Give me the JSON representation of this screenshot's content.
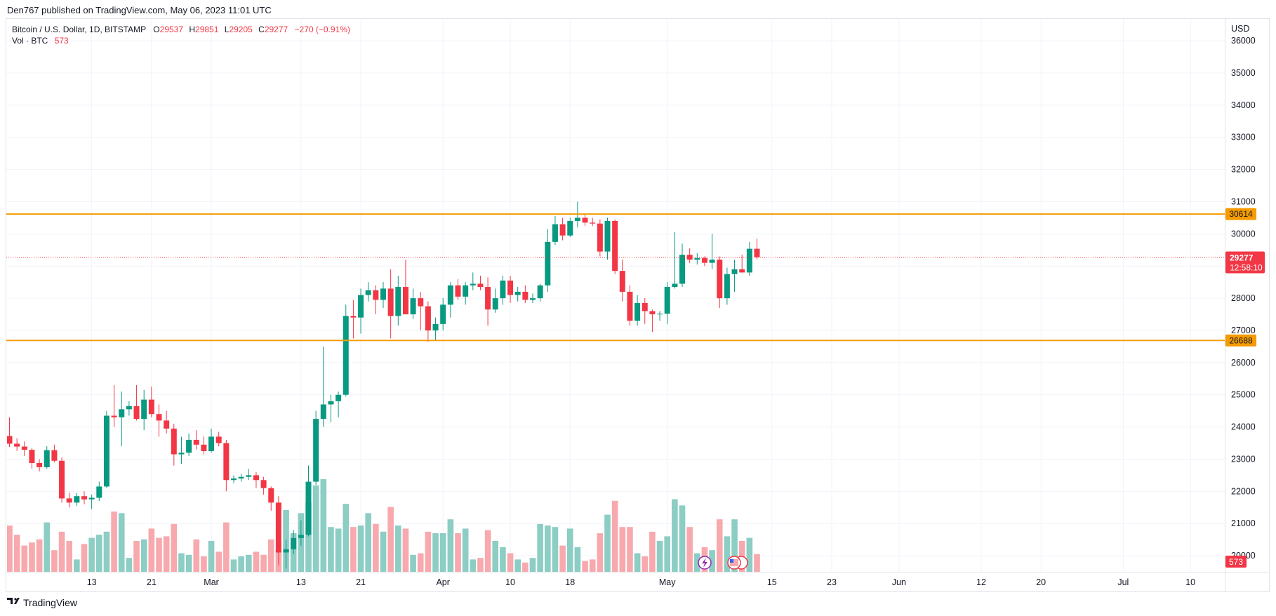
{
  "header": {
    "published_by": "Den767 published on TradingView.com, May 06, 2023 11:01 UTC",
    "symbol_line": "Bitcoin / U.S. Dollar, 1D, BITSTAMP",
    "o_label": "O",
    "o_value": "29537",
    "h_label": "H",
    "h_value": "29851",
    "l_label": "L",
    "l_value": "29205",
    "c_label": "C",
    "c_value": "29277",
    "change": "−270 (−0.91%)",
    "vol_label": "Vol · BTC",
    "vol_value": "573"
  },
  "axis": {
    "currency": "USD"
  },
  "badges": {
    "resistance": "30614",
    "support": "26688",
    "last_price": "29277",
    "countdown": "12:58:10",
    "volume": "573"
  },
  "footer": {
    "brand": "TradingView"
  },
  "colors": {
    "up": "#089981",
    "down": "#f23645",
    "vol_up": "#8ccdc4",
    "vol_down": "#f7a9ae",
    "level_line": "#f59b00",
    "grid": "#f0f3fa"
  },
  "icons": [
    "lightning-icon",
    "us-flag-icon",
    "tradingview-logo-icon"
  ],
  "chart_data": {
    "type": "candlestick",
    "ylim": [
      19500,
      36700
    ],
    "yticks": [
      20000,
      21000,
      22000,
      23000,
      24000,
      25000,
      26000,
      27000,
      28000,
      29000,
      30000,
      31000,
      32000,
      33000,
      34000,
      35000,
      36000
    ],
    "xticks": [
      {
        "label": "13",
        "index": 11
      },
      {
        "label": "21",
        "index": 19
      },
      {
        "label": "Mar",
        "index": 27
      },
      {
        "label": "13",
        "index": 39
      },
      {
        "label": "21",
        "index": 47
      },
      {
        "label": "Apr",
        "index": 58
      },
      {
        "label": "10",
        "index": 67
      },
      {
        "label": "18",
        "index": 75
      },
      {
        "label": "May",
        "index": 88
      },
      {
        "label": "15",
        "index": 102
      },
      {
        "label": "23",
        "index": 110
      },
      {
        "label": "Jun",
        "index": 119
      },
      {
        "label": "12",
        "index": 130
      },
      {
        "label": "20",
        "index": 138
      },
      {
        "label": "Jul",
        "index": 149
      },
      {
        "label": "10",
        "index": 158
      }
    ],
    "levels": [
      30614,
      26688
    ],
    "last_close": 29277,
    "volume_max": 2400,
    "candles": [
      {
        "o": 23720,
        "h": 24300,
        "l": 23380,
        "c": 23480,
        "v": 1500
      },
      {
        "o": 23480,
        "h": 23650,
        "l": 23260,
        "c": 23390,
        "v": 1200
      },
      {
        "o": 23390,
        "h": 23550,
        "l": 23100,
        "c": 23290,
        "v": 850
      },
      {
        "o": 23290,
        "h": 23350,
        "l": 22700,
        "c": 22880,
        "v": 950
      },
      {
        "o": 22880,
        "h": 23000,
        "l": 22620,
        "c": 22750,
        "v": 1050
      },
      {
        "o": 22750,
        "h": 23400,
        "l": 22700,
        "c": 23280,
        "v": 1600
      },
      {
        "o": 23280,
        "h": 23450,
        "l": 22900,
        "c": 22950,
        "v": 700
      },
      {
        "o": 22950,
        "h": 23050,
        "l": 21650,
        "c": 21780,
        "v": 1300
      },
      {
        "o": 21780,
        "h": 21950,
        "l": 21500,
        "c": 21650,
        "v": 1000
      },
      {
        "o": 21650,
        "h": 21950,
        "l": 21550,
        "c": 21850,
        "v": 400
      },
      {
        "o": 21850,
        "h": 22000,
        "l": 21600,
        "c": 21750,
        "v": 900
      },
      {
        "o": 21750,
        "h": 21900,
        "l": 21450,
        "c": 21800,
        "v": 1100
      },
      {
        "o": 21800,
        "h": 22300,
        "l": 21700,
        "c": 22150,
        "v": 1200
      },
      {
        "o": 22150,
        "h": 24500,
        "l": 22100,
        "c": 24350,
        "v": 1300
      },
      {
        "o": 24350,
        "h": 25300,
        "l": 24000,
        "c": 24300,
        "v": 1950
      },
      {
        "o": 24300,
        "h": 25100,
        "l": 23400,
        "c": 24550,
        "v": 1900
      },
      {
        "o": 24550,
        "h": 24800,
        "l": 24350,
        "c": 24650,
        "v": 450
      },
      {
        "o": 24650,
        "h": 25300,
        "l": 24200,
        "c": 24250,
        "v": 1000
      },
      {
        "o": 24250,
        "h": 25150,
        "l": 23900,
        "c": 24850,
        "v": 1050
      },
      {
        "o": 24850,
        "h": 25250,
        "l": 24300,
        "c": 24400,
        "v": 1400
      },
      {
        "o": 24400,
        "h": 24700,
        "l": 23700,
        "c": 24200,
        "v": 1100
      },
      {
        "o": 24200,
        "h": 24500,
        "l": 23800,
        "c": 23950,
        "v": 1150
      },
      {
        "o": 23950,
        "h": 24100,
        "l": 22800,
        "c": 23150,
        "v": 1550
      },
      {
        "o": 23150,
        "h": 23700,
        "l": 22850,
        "c": 23200,
        "v": 600
      },
      {
        "o": 23200,
        "h": 23800,
        "l": 23100,
        "c": 23600,
        "v": 550
      },
      {
        "o": 23600,
        "h": 23900,
        "l": 23300,
        "c": 23450,
        "v": 1050
      },
      {
        "o": 23450,
        "h": 23700,
        "l": 23150,
        "c": 23250,
        "v": 500
      },
      {
        "o": 23250,
        "h": 23950,
        "l": 23200,
        "c": 23700,
        "v": 1000
      },
      {
        "o": 23700,
        "h": 23850,
        "l": 23400,
        "c": 23500,
        "v": 650
      },
      {
        "o": 23500,
        "h": 23600,
        "l": 22000,
        "c": 22350,
        "v": 1600
      },
      {
        "o": 22350,
        "h": 22500,
        "l": 22250,
        "c": 22400,
        "v": 400
      },
      {
        "o": 22400,
        "h": 22550,
        "l": 22300,
        "c": 22450,
        "v": 500
      },
      {
        "o": 22450,
        "h": 22700,
        "l": 22350,
        "c": 22500,
        "v": 550
      },
      {
        "o": 22500,
        "h": 22600,
        "l": 22100,
        "c": 22350,
        "v": 650
      },
      {
        "o": 22350,
        "h": 22450,
        "l": 21900,
        "c": 22100,
        "v": 550
      },
      {
        "o": 22100,
        "h": 22150,
        "l": 21400,
        "c": 21650,
        "v": 1050
      },
      {
        "o": 21650,
        "h": 21850,
        "l": 19700,
        "c": 20100,
        "v": 700
      },
      {
        "o": 20100,
        "h": 20500,
        "l": 19600,
        "c": 20200,
        "v": 2000
      },
      {
        "o": 20200,
        "h": 20800,
        "l": 20050,
        "c": 20550,
        "v": 1250
      },
      {
        "o": 20550,
        "h": 21100,
        "l": 20300,
        "c": 20650,
        "v": 1900
      },
      {
        "o": 20650,
        "h": 22800,
        "l": 20600,
        "c": 22300,
        "v": 2250
      },
      {
        "o": 22300,
        "h": 24500,
        "l": 22200,
        "c": 24250,
        "v": 2800
      },
      {
        "o": 24250,
        "h": 26500,
        "l": 24000,
        "c": 24700,
        "v": 3000
      },
      {
        "o": 24700,
        "h": 25000,
        "l": 24150,
        "c": 24800,
        "v": 1450
      },
      {
        "o": 24800,
        "h": 25100,
        "l": 24300,
        "c": 25000,
        "v": 1400
      },
      {
        "o": 25000,
        "h": 27800,
        "l": 24950,
        "c": 27450,
        "v": 2200
      },
      {
        "o": 27450,
        "h": 27950,
        "l": 26750,
        "c": 27400,
        "v": 1450
      },
      {
        "o": 27400,
        "h": 28300,
        "l": 26900,
        "c": 28100,
        "v": 1500
      },
      {
        "o": 28100,
        "h": 28500,
        "l": 27900,
        "c": 28250,
        "v": 1900
      },
      {
        "o": 28250,
        "h": 28400,
        "l": 27500,
        "c": 27950,
        "v": 1550
      },
      {
        "o": 27950,
        "h": 28500,
        "l": 27700,
        "c": 28300,
        "v": 1300
      },
      {
        "o": 28300,
        "h": 28900,
        "l": 26750,
        "c": 27450,
        "v": 2100
      },
      {
        "o": 27450,
        "h": 28700,
        "l": 27150,
        "c": 28350,
        "v": 1500
      },
      {
        "o": 28350,
        "h": 29200,
        "l": 27500,
        "c": 27500,
        "v": 1400
      },
      {
        "o": 27500,
        "h": 28300,
        "l": 27350,
        "c": 28000,
        "v": 550
      },
      {
        "o": 28000,
        "h": 28200,
        "l": 27000,
        "c": 27750,
        "v": 600
      },
      {
        "o": 27750,
        "h": 27900,
        "l": 26650,
        "c": 27000,
        "v": 1300
      },
      {
        "o": 27000,
        "h": 27400,
        "l": 26700,
        "c": 27200,
        "v": 1250
      },
      {
        "o": 27200,
        "h": 28000,
        "l": 27000,
        "c": 27800,
        "v": 1250
      },
      {
        "o": 27800,
        "h": 28500,
        "l": 27400,
        "c": 28400,
        "v": 1700
      },
      {
        "o": 28400,
        "h": 28600,
        "l": 27950,
        "c": 28050,
        "v": 1250
      },
      {
        "o": 28050,
        "h": 28500,
        "l": 27800,
        "c": 28400,
        "v": 1400
      },
      {
        "o": 28400,
        "h": 28800,
        "l": 28250,
        "c": 28450,
        "v": 400
      },
      {
        "o": 28450,
        "h": 28700,
        "l": 28250,
        "c": 28350,
        "v": 450
      },
      {
        "o": 28350,
        "h": 28650,
        "l": 27150,
        "c": 27650,
        "v": 1350
      },
      {
        "o": 27650,
        "h": 28300,
        "l": 27550,
        "c": 28000,
        "v": 1000
      },
      {
        "o": 28000,
        "h": 28700,
        "l": 27800,
        "c": 28550,
        "v": 800
      },
      {
        "o": 28550,
        "h": 28700,
        "l": 27850,
        "c": 28100,
        "v": 600
      },
      {
        "o": 28100,
        "h": 28350,
        "l": 27900,
        "c": 28200,
        "v": 400
      },
      {
        "o": 28200,
        "h": 28400,
        "l": 27850,
        "c": 27950,
        "v": 300
      },
      {
        "o": 27950,
        "h": 28150,
        "l": 27850,
        "c": 28000,
        "v": 450
      },
      {
        "o": 28000,
        "h": 28450,
        "l": 27900,
        "c": 28400,
        "v": 1550
      },
      {
        "o": 28400,
        "h": 30150,
        "l": 28200,
        "c": 29750,
        "v": 1500
      },
      {
        "o": 29750,
        "h": 30550,
        "l": 29650,
        "c": 30300,
        "v": 1450
      },
      {
        "o": 30300,
        "h": 30500,
        "l": 29800,
        "c": 29950,
        "v": 850
      },
      {
        "o": 29950,
        "h": 30500,
        "l": 29900,
        "c": 30400,
        "v": 1400
      },
      {
        "o": 30400,
        "h": 31000,
        "l": 30200,
        "c": 30500,
        "v": 800
      },
      {
        "o": 30500,
        "h": 30600,
        "l": 30250,
        "c": 30350,
        "v": 350
      },
      {
        "o": 30350,
        "h": 30500,
        "l": 30250,
        "c": 30320,
        "v": 400
      },
      {
        "o": 30320,
        "h": 30450,
        "l": 29300,
        "c": 29450,
        "v": 1250
      },
      {
        "o": 29450,
        "h": 30500,
        "l": 29200,
        "c": 30400,
        "v": 1850
      },
      {
        "o": 30400,
        "h": 30450,
        "l": 28750,
        "c": 28850,
        "v": 2300
      },
      {
        "o": 28850,
        "h": 29200,
        "l": 27900,
        "c": 28200,
        "v": 1450
      },
      {
        "o": 28200,
        "h": 28400,
        "l": 27150,
        "c": 27300,
        "v": 1450
      },
      {
        "o": 27300,
        "h": 28100,
        "l": 27150,
        "c": 27850,
        "v": 600
      },
      {
        "o": 27850,
        "h": 28000,
        "l": 27200,
        "c": 27600,
        "v": 500
      },
      {
        "o": 27600,
        "h": 27650,
        "l": 26950,
        "c": 27500,
        "v": 1300
      },
      {
        "o": 27500,
        "h": 27600,
        "l": 27300,
        "c": 27520,
        "v": 1000
      },
      {
        "o": 27520,
        "h": 28500,
        "l": 27200,
        "c": 28350,
        "v": 1150
      },
      {
        "o": 28350,
        "h": 30050,
        "l": 28300,
        "c": 28450,
        "v": 2350
      },
      {
        "o": 28450,
        "h": 29700,
        "l": 28350,
        "c": 29350,
        "v": 2150
      },
      {
        "o": 29350,
        "h": 29550,
        "l": 29100,
        "c": 29200,
        "v": 1450
      },
      {
        "o": 29200,
        "h": 29400,
        "l": 29050,
        "c": 29250,
        "v": 600
      },
      {
        "o": 29250,
        "h": 29300,
        "l": 29000,
        "c": 29100,
        "v": 800
      },
      {
        "o": 29100,
        "h": 30000,
        "l": 28900,
        "c": 29200,
        "v": 700
      },
      {
        "o": 29200,
        "h": 29300,
        "l": 27700,
        "c": 28000,
        "v": 1700
      },
      {
        "o": 28000,
        "h": 28950,
        "l": 27800,
        "c": 28750,
        "v": 1150
      },
      {
        "o": 28750,
        "h": 29200,
        "l": 28200,
        "c": 28900,
        "v": 1700
      },
      {
        "o": 28900,
        "h": 29350,
        "l": 28800,
        "c": 28800,
        "v": 1000
      },
      {
        "o": 28800,
        "h": 29750,
        "l": 28700,
        "c": 29537,
        "v": 1100
      },
      {
        "o": 29537,
        "h": 29851,
        "l": 29205,
        "c": 29277,
        "v": 573
      }
    ]
  }
}
